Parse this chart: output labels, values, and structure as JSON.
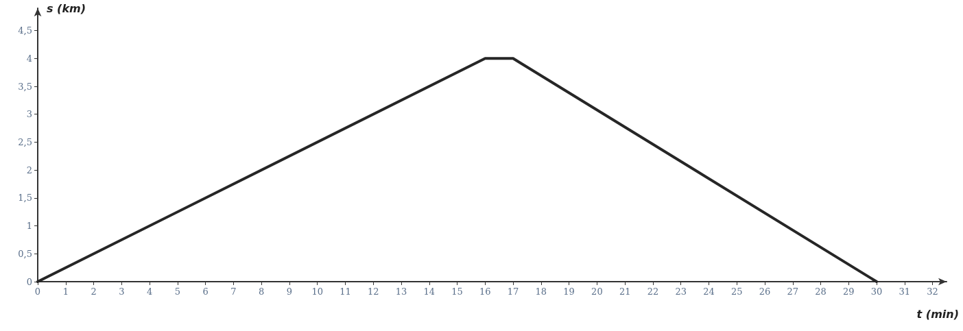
{
  "chart_data": {
    "type": "line",
    "xlabel": "t (min)",
    "ylabel": "s (km)",
    "x": [
      0,
      16,
      17,
      30
    ],
    "series": [
      {
        "color": "#262626",
        "values": [
          0,
          4,
          4,
          0
        ]
      }
    ],
    "xlim": [
      0,
      32.5
    ],
    "xticks": [
      0,
      1,
      2,
      3,
      4,
      5,
      6,
      7,
      8,
      9,
      10,
      11,
      12,
      13,
      14,
      15,
      16,
      17,
      18,
      19,
      20,
      21,
      22,
      23,
      24,
      25,
      26,
      27,
      28,
      29,
      30,
      31,
      32
    ],
    "ylim": [
      0,
      4.9
    ],
    "yticks": [
      0,
      {
        "value": 0.5,
        "label": "0,5"
      },
      1,
      {
        "value": 1.5,
        "label": "1,5"
      },
      2,
      {
        "value": 2.5,
        "label": "2,5"
      },
      3,
      {
        "value": 3.5,
        "label": "3,5"
      },
      4,
      {
        "value": 4.5,
        "label": "4,5"
      }
    ],
    "marker": "none",
    "line_style": "solid"
  }
}
